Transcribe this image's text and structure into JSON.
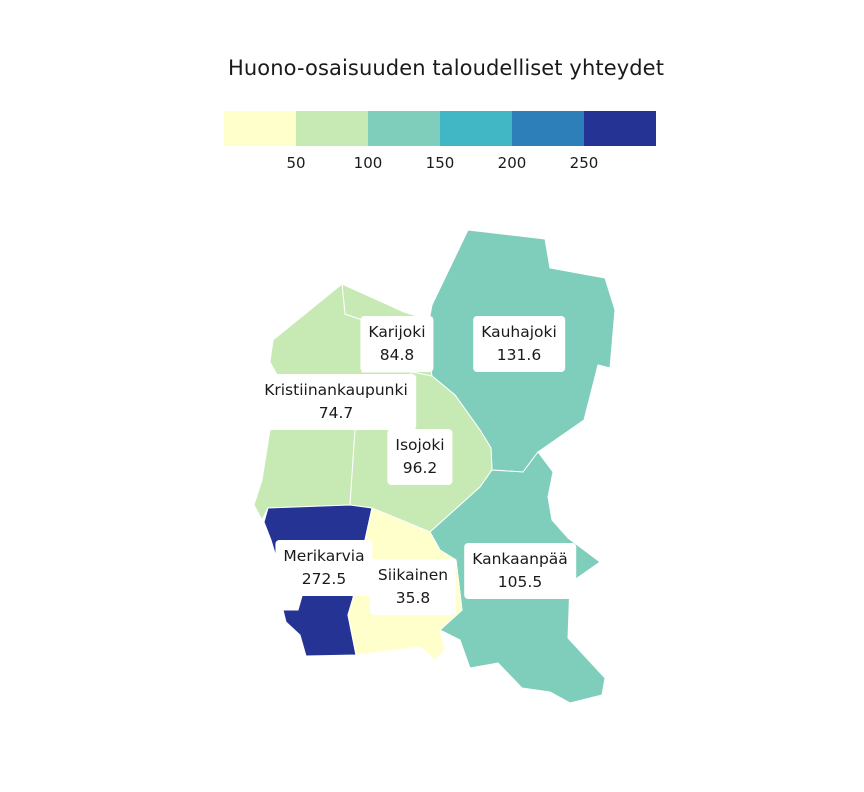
{
  "title": "Huono-osaisuuden taloudelliset yhteydet",
  "legend": {
    "colors": [
      "#ffffcc",
      "#c7e9b4",
      "#7fcdbb",
      "#41b6c4",
      "#2c7fb8",
      "#253494"
    ],
    "ticks": [
      "50",
      "100",
      "150",
      "200",
      "250"
    ]
  },
  "regions": [
    {
      "key": "kauhajoki",
      "name": "Kauhajoki",
      "value": "131.6",
      "color": "#7fcdbb"
    },
    {
      "key": "karijoki",
      "name": "Karijoki",
      "value": "84.8",
      "color": "#c7e9b4"
    },
    {
      "key": "kristiinankaupunki",
      "name": "Kristiinankaupunki",
      "value": "74.7",
      "color": "#c7e9b4"
    },
    {
      "key": "isojoki",
      "name": "Isojoki",
      "value": "96.2",
      "color": "#c7e9b4"
    },
    {
      "key": "kankaanpaa",
      "name": "Kankaanpää",
      "value": "105.5",
      "color": "#7fcdbb"
    },
    {
      "key": "merikarvia",
      "name": "Merikarvia",
      "value": "272.5",
      "color": "#253494"
    },
    {
      "key": "siikainen",
      "name": "Siikainen",
      "value": "35.8",
      "color": "#ffffcc"
    }
  ]
}
